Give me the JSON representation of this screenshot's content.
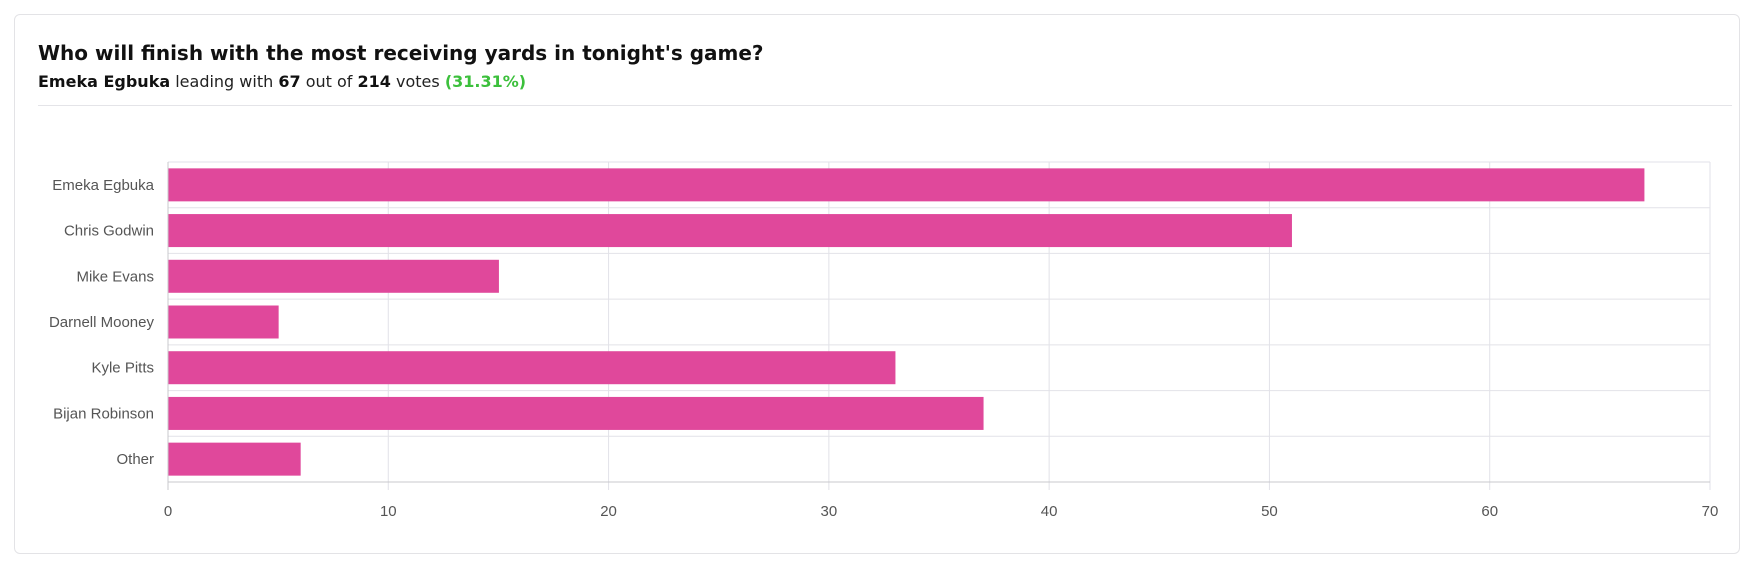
{
  "poll": {
    "title": "Who will finish with the most receiving yards in tonight's game?",
    "leader_name": "Emeka Egbuka",
    "leading_with_text": "leading with",
    "leader_votes": "67",
    "out_of_text": "out of",
    "total_votes": "214",
    "votes_text": "votes",
    "leader_percent": "(31.31%)"
  },
  "colors": {
    "bar": "#e0489b",
    "grid": "#e2e2e8",
    "axis": "#c8c8cc",
    "leader_percent": "#3cc03c"
  },
  "chart_data": {
    "type": "bar",
    "orientation": "horizontal",
    "categories": [
      "Emeka Egbuka",
      "Chris Godwin",
      "Mike Evans",
      "Darnell Mooney",
      "Kyle Pitts",
      "Bijan Robinson",
      "Other"
    ],
    "values": [
      67,
      51,
      15,
      5,
      33,
      37,
      6
    ],
    "xlim": [
      0,
      70
    ],
    "xticks": [
      0,
      10,
      20,
      30,
      40,
      50,
      60,
      70
    ],
    "grid": true,
    "legend": "none"
  }
}
